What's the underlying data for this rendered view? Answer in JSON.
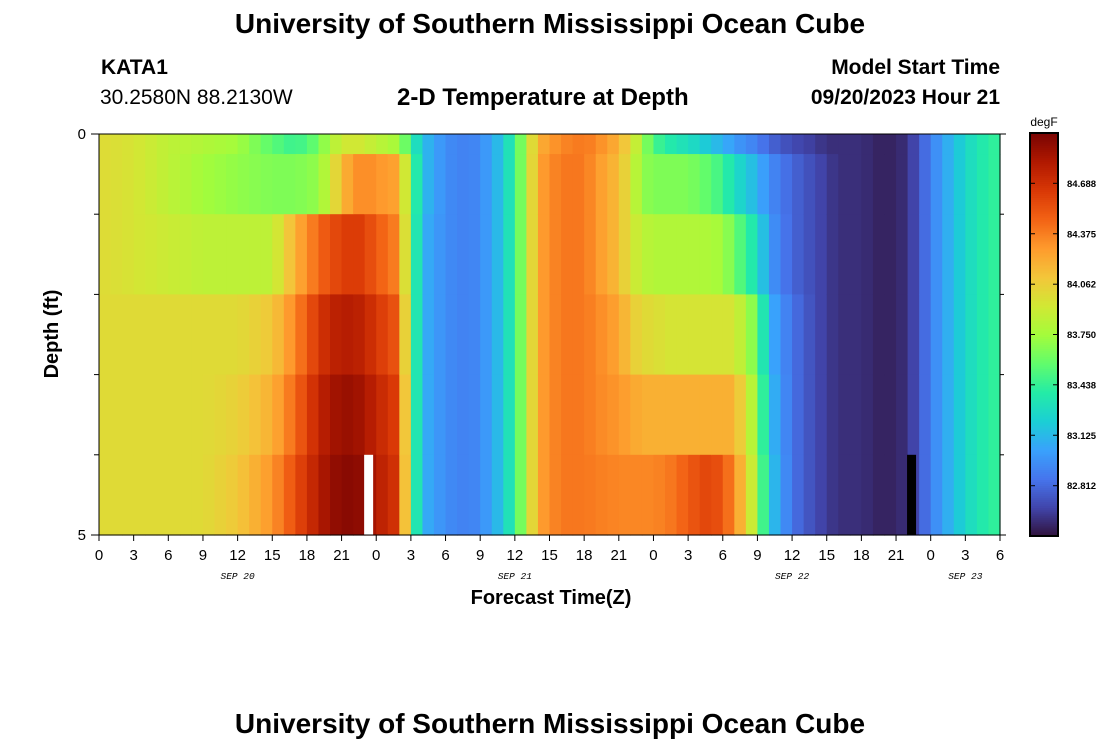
{
  "header": {
    "title": "University of Southern Mississippi Ocean Cube",
    "station_id": "KATA1",
    "coords": "30.2580N  88.2130W",
    "subtitle": "2-D Temperature at Depth",
    "model_label": "Model Start Time",
    "model_time": "09/20/2023 Hour 21"
  },
  "footer": {
    "title": "University of Southern Mississippi Ocean Cube"
  },
  "colors": {
    "colormap": [
      "#30123b",
      "#4145ab",
      "#4675ed",
      "#39a2fc",
      "#1bcfd4",
      "#24eca6",
      "#61fc6c",
      "#a4fc3b",
      "#d1e834",
      "#f3c63a",
      "#fe9b2d",
      "#f36315",
      "#d93806",
      "#b11901",
      "#7a0402"
    ],
    "marker_white": "#ffffff",
    "marker_black": "#000000"
  },
  "chart_data": {
    "type": "heatmap",
    "title": "2-D Temperature at Depth",
    "xlabel": "Forecast Time(Z)",
    "ylabel": "Depth (ft)",
    "ylim": [
      0,
      5
    ],
    "y_ticks": [
      "0",
      "5"
    ],
    "x_tick_labels": [
      "0",
      "3",
      "6",
      "9",
      "12",
      "15",
      "18",
      "21",
      "0",
      "3",
      "6",
      "9",
      "12",
      "15",
      "18",
      "21",
      "0",
      "3",
      "6",
      "9",
      "12",
      "15",
      "18",
      "21",
      "0",
      "3",
      "6"
    ],
    "x_range_hours": [
      0,
      78
    ],
    "date_labels": [
      {
        "text": "SEP 20",
        "hour": 12
      },
      {
        "text": "SEP 21",
        "hour": 36
      },
      {
        "text": "SEP 22",
        "hour": 60
      },
      {
        "text": "SEP 23",
        "hour": 75
      }
    ],
    "depth_rows_ft": [
      0,
      0.5,
      1.5,
      2.5,
      3.5,
      4.5
    ],
    "colorbar": {
      "unit": "degF",
      "min": 82.5,
      "max": 85.0,
      "tick_values": [
        82.812,
        83.125,
        83.438,
        83.75,
        84.062,
        84.375,
        84.688
      ],
      "tick_labels": [
        "82.812",
        "83.125",
        "83.438",
        "83.750",
        "84.062",
        "84.375",
        "84.688"
      ]
    },
    "temperature_keyframes": {
      "hours": [
        0,
        3,
        6,
        9,
        12,
        15,
        17,
        19,
        20,
        21,
        22,
        23,
        24,
        26,
        27,
        28,
        30,
        32,
        33,
        34,
        35,
        36,
        37,
        38,
        40,
        42,
        43,
        45,
        46,
        47,
        48,
        49,
        50,
        51,
        52,
        53,
        54,
        55,
        57,
        58,
        60,
        62,
        63,
        64,
        66,
        68,
        70,
        72,
        74,
        76,
        78
      ],
      "rows": [
        [
          84.0,
          83.95,
          83.85,
          83.8,
          83.75,
          83.55,
          83.45,
          83.6,
          83.8,
          83.9,
          83.95,
          83.9,
          83.85,
          83.75,
          83.45,
          83.15,
          82.95,
          82.9,
          82.95,
          83.05,
          83.2,
          83.45,
          83.8,
          84.2,
          84.35,
          84.4,
          84.35,
          84.2,
          84.0,
          83.75,
          83.5,
          83.4,
          83.35,
          83.3,
          83.25,
          83.15,
          83.1,
          83.0,
          82.9,
          82.8,
          82.7,
          82.65,
          82.6,
          82.6,
          82.6,
          82.55,
          82.6,
          82.9,
          83.15,
          83.35,
          83.45
        ],
        [
          84.0,
          83.95,
          83.85,
          83.75,
          83.7,
          83.65,
          83.65,
          83.7,
          83.9,
          84.15,
          84.3,
          84.35,
          84.3,
          84.25,
          83.6,
          83.15,
          82.95,
          82.9,
          82.95,
          83.05,
          83.2,
          83.45,
          83.8,
          84.25,
          84.4,
          84.4,
          84.3,
          84.15,
          83.95,
          83.7,
          83.65,
          83.65,
          83.65,
          83.65,
          83.6,
          83.55,
          83.45,
          83.3,
          83.1,
          82.95,
          82.8,
          82.7,
          82.65,
          82.6,
          82.6,
          82.55,
          82.6,
          82.9,
          83.15,
          83.35,
          83.45
        ],
        [
          84.0,
          83.95,
          83.9,
          83.85,
          83.85,
          83.85,
          84.2,
          84.45,
          84.55,
          84.6,
          84.65,
          84.6,
          84.5,
          84.35,
          83.6,
          83.1,
          82.95,
          82.9,
          82.95,
          83.05,
          83.2,
          83.45,
          83.8,
          84.25,
          84.4,
          84.4,
          84.3,
          84.15,
          83.95,
          83.85,
          83.8,
          83.8,
          83.8,
          83.8,
          83.8,
          83.78,
          83.75,
          83.6,
          83.3,
          83.0,
          82.8,
          82.7,
          82.65,
          82.6,
          82.6,
          82.55,
          82.6,
          82.9,
          83.15,
          83.35,
          83.45
        ],
        [
          84.0,
          84.0,
          84.0,
          84.0,
          84.0,
          84.1,
          84.35,
          84.65,
          84.75,
          84.8,
          84.8,
          84.75,
          84.65,
          84.5,
          83.6,
          83.1,
          82.95,
          82.9,
          82.95,
          83.05,
          83.2,
          83.45,
          83.8,
          84.25,
          84.4,
          84.4,
          84.35,
          84.25,
          84.1,
          84.0,
          84.0,
          83.95,
          83.95,
          83.95,
          83.95,
          83.95,
          83.95,
          83.95,
          83.6,
          83.1,
          82.85,
          82.7,
          82.65,
          82.6,
          82.6,
          82.55,
          82.6,
          82.9,
          83.15,
          83.35,
          83.45
        ],
        [
          84.0,
          84.0,
          84.0,
          84.0,
          84.05,
          84.2,
          84.45,
          84.75,
          84.85,
          84.9,
          84.9,
          84.85,
          84.75,
          84.6,
          83.6,
          83.1,
          82.95,
          82.9,
          82.95,
          83.05,
          83.2,
          83.45,
          83.8,
          84.25,
          84.4,
          84.4,
          84.35,
          84.3,
          84.25,
          84.2,
          84.2,
          84.2,
          84.2,
          84.2,
          84.2,
          84.2,
          84.2,
          84.2,
          83.7,
          83.15,
          82.85,
          82.7,
          82.65,
          82.6,
          82.6,
          82.55,
          82.6,
          82.9,
          83.15,
          83.35,
          83.45
        ],
        [
          84.0,
          84.0,
          84.0,
          84.0,
          84.1,
          84.3,
          84.55,
          84.8,
          84.9,
          84.95,
          84.95,
          84.92,
          84.8,
          84.65,
          83.6,
          83.1,
          82.95,
          82.9,
          82.95,
          83.05,
          83.2,
          83.45,
          83.8,
          84.25,
          84.4,
          84.4,
          84.38,
          84.35,
          84.35,
          84.35,
          84.35,
          84.38,
          84.42,
          84.5,
          84.55,
          84.6,
          84.5,
          84.35,
          83.75,
          83.2,
          82.85,
          82.7,
          82.65,
          82.6,
          82.6,
          82.55,
          82.6,
          82.9,
          83.15,
          83.35,
          83.45
        ]
      ]
    },
    "markers": [
      {
        "hour": 23.3,
        "color": "white"
      },
      {
        "hour": 70.3,
        "color": "black"
      }
    ]
  }
}
